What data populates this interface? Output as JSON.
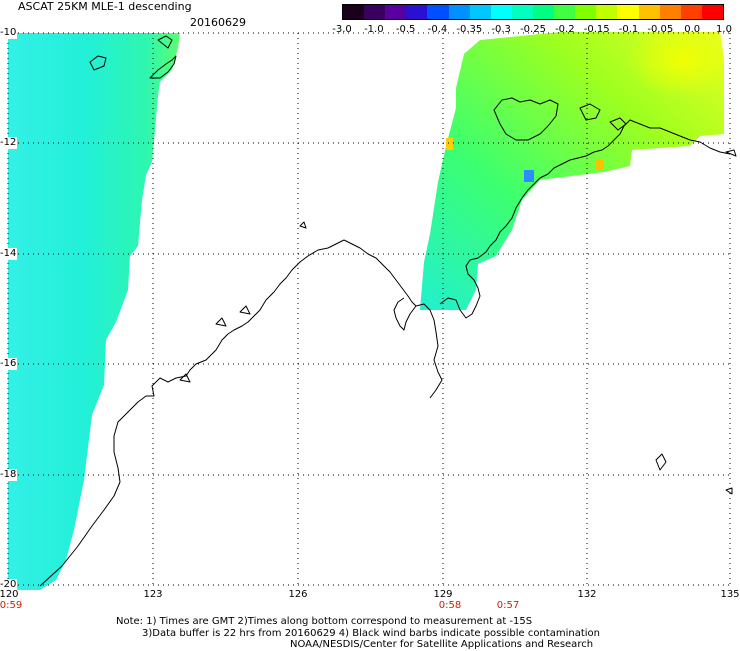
{
  "header": {
    "title": "ASCAT 25KM MLE-1 descending",
    "date": "20160629"
  },
  "colorbar": {
    "labels": [
      "-3.0",
      "-1.0",
      "-0.5",
      "-0.4",
      "-0.35",
      "-0.3",
      "-0.25",
      "-0.2",
      "-0.15",
      "-0.1",
      "-0.05",
      "0.0",
      "1.0"
    ],
    "colors": [
      "#1a001a",
      "#3a0060",
      "#5a00a0",
      "#2a10d0",
      "#0050ff",
      "#0090ff",
      "#00c8ff",
      "#00ffff",
      "#00ffc0",
      "#00ff80",
      "#40ff40",
      "#80ff00",
      "#c0ff00",
      "#ffff00",
      "#ffc000",
      "#ff8000",
      "#ff4000",
      "#ff0000"
    ]
  },
  "map": {
    "lat_labels": [
      "-10",
      "-12",
      "-14",
      "-16",
      "-18",
      "-20"
    ],
    "lon_labels": [
      "120",
      "123",
      "126",
      "129",
      "132",
      "135"
    ],
    "time_labels": [
      {
        "text": "0:59",
        "lon": "120"
      },
      {
        "text": "0:58",
        "lon": "129"
      },
      {
        "text": "0:57",
        "lon": "130.5"
      }
    ]
  },
  "notes": {
    "line1": "Note: 1) Times are GMT 2)Times along bottom correspond to measurement at -15S",
    "line2": "3)Data buffer is 22 hrs from 20160629 4) Black wind barbs indicate possible contamination",
    "line3": "NOAA/NESDIS/Center for Satellite Applications and Research"
  }
}
